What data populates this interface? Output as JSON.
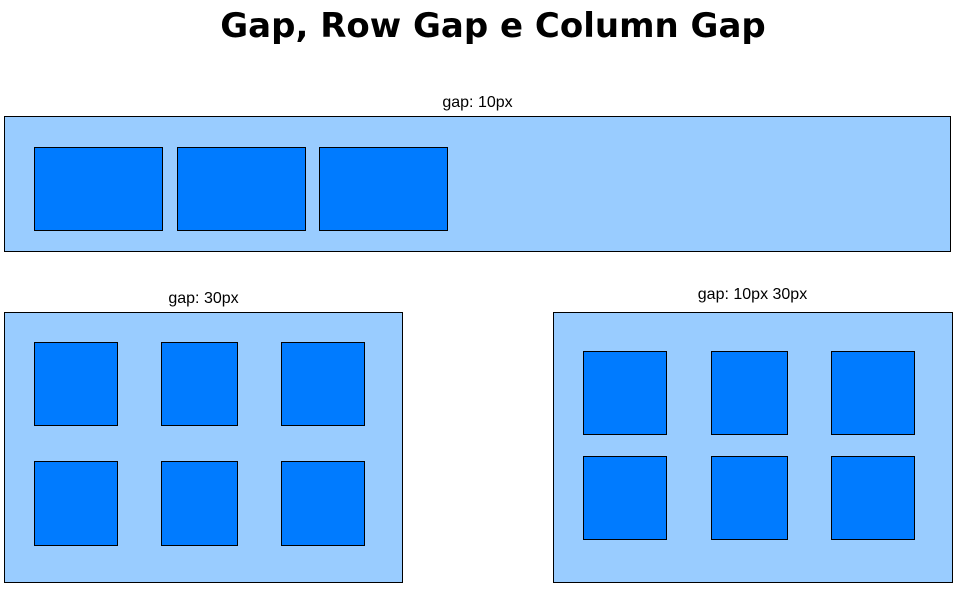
{
  "page": {
    "title": "Gap, Row Gap e Column Gap"
  },
  "colors": {
    "container_fill": "#99ccff",
    "item_fill": "#007bff",
    "border": "#000000"
  },
  "examples": [
    {
      "label": "gap: 10px",
      "items": 3
    },
    {
      "label": "gap: 30px",
      "items": 6
    },
    {
      "label": "gap: 10px 30px",
      "items": 6
    }
  ]
}
